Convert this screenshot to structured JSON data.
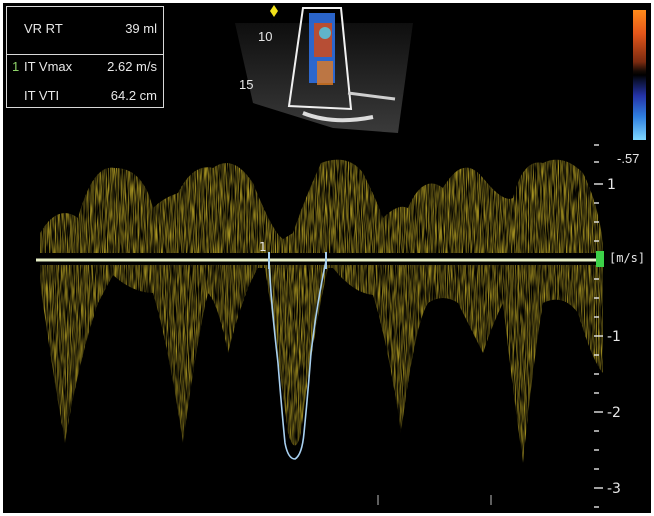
{
  "measurements": [
    {
      "num": "",
      "label": "VR RT",
      "value": "39 ml"
    },
    {
      "num": "1",
      "label": "IT Vmax",
      "value": "2.62 m/s"
    },
    {
      "num": "",
      "label": "IT VTI",
      "value": "64.2 cm"
    }
  ],
  "scale_top_label": "-.57",
  "velocity_unit": "[m/s]",
  "depth_labels": [
    "10",
    "15"
  ],
  "y_ticks": [
    "1",
    "-1",
    "-2",
    "-3"
  ],
  "trace_marker": "1",
  "colors": {
    "doppler": "#c8b028",
    "baseline": "#e8f0c8",
    "trace": "#a8d0f0",
    "baseline_marker": "#3cd048"
  }
}
